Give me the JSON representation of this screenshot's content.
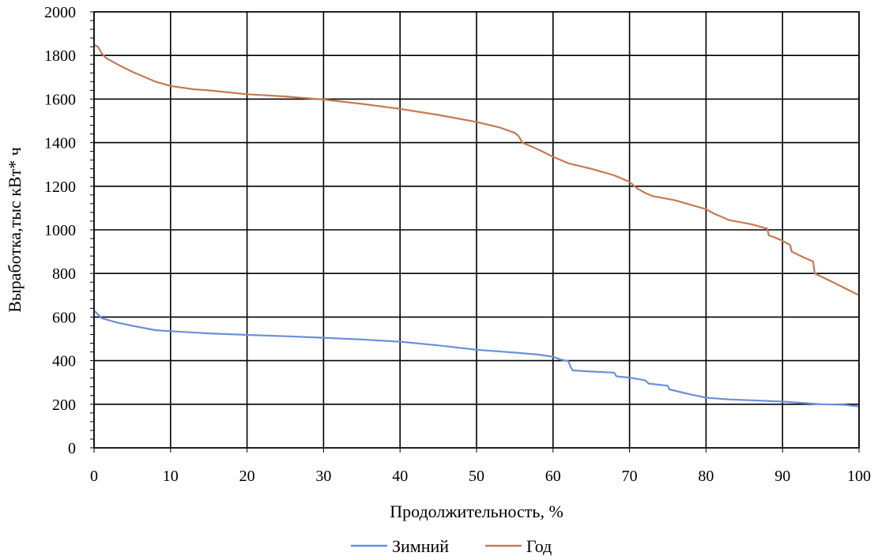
{
  "chart_data": {
    "type": "line",
    "xlabel": "Продолжительность, %",
    "ylabel": "Выработка,тыс кВт* ч",
    "xlim": [
      0,
      100
    ],
    "ylim": [
      0,
      2000
    ],
    "xticks": [
      0,
      10,
      20,
      30,
      40,
      50,
      60,
      70,
      80,
      90,
      100
    ],
    "yticks": [
      0,
      200,
      400,
      600,
      800,
      1000,
      1200,
      1400,
      1600,
      1800,
      2000
    ],
    "grid": true,
    "legend_position": "bottom",
    "series": [
      {
        "name": "Зимний",
        "color": "#6b8fd9",
        "points": [
          [
            0,
            630
          ],
          [
            1,
            595
          ],
          [
            3,
            575
          ],
          [
            5,
            560
          ],
          [
            8,
            540
          ],
          [
            10,
            535
          ],
          [
            15,
            525
          ],
          [
            20,
            518
          ],
          [
            25,
            512
          ],
          [
            30,
            505
          ],
          [
            35,
            497
          ],
          [
            40,
            487
          ],
          [
            45,
            470
          ],
          [
            50,
            450
          ],
          [
            55,
            437
          ],
          [
            58,
            428
          ],
          [
            60,
            418
          ],
          [
            61,
            405
          ],
          [
            62,
            398
          ],
          [
            62.3,
            370
          ],
          [
            62.6,
            355
          ],
          [
            65,
            350
          ],
          [
            68,
            345
          ],
          [
            68.3,
            328
          ],
          [
            70,
            322
          ],
          [
            72,
            310
          ],
          [
            72.5,
            295
          ],
          [
            75,
            285
          ],
          [
            75.2,
            268
          ],
          [
            78,
            245
          ],
          [
            80,
            230
          ],
          [
            83,
            222
          ],
          [
            86,
            218
          ],
          [
            90,
            212
          ],
          [
            93,
            205
          ],
          [
            95,
            200
          ],
          [
            98,
            198
          ],
          [
            100,
            190
          ]
        ]
      },
      {
        "name": "Год",
        "color": "#c57a52",
        "points": [
          [
            0,
            1850
          ],
          [
            0.5,
            1840
          ],
          [
            1,
            1810
          ],
          [
            1.5,
            1790
          ],
          [
            3,
            1760
          ],
          [
            5,
            1725
          ],
          [
            8,
            1680
          ],
          [
            10,
            1660
          ],
          [
            13,
            1645
          ],
          [
            15,
            1640
          ],
          [
            20,
            1622
          ],
          [
            25,
            1612
          ],
          [
            30,
            1598
          ],
          [
            35,
            1578
          ],
          [
            40,
            1555
          ],
          [
            45,
            1527
          ],
          [
            50,
            1495
          ],
          [
            53,
            1470
          ],
          [
            55,
            1445
          ],
          [
            55.5,
            1430
          ],
          [
            56,
            1400
          ],
          [
            58,
            1370
          ],
          [
            60,
            1335
          ],
          [
            62,
            1305
          ],
          [
            65,
            1280
          ],
          [
            68,
            1250
          ],
          [
            70,
            1220
          ],
          [
            71,
            1190
          ],
          [
            72,
            1170
          ],
          [
            73,
            1155
          ],
          [
            76,
            1135
          ],
          [
            78,
            1115
          ],
          [
            80,
            1095
          ],
          [
            81,
            1075
          ],
          [
            82,
            1060
          ],
          [
            83,
            1045
          ],
          [
            86,
            1025
          ],
          [
            88,
            1005
          ],
          [
            88.2,
            975
          ],
          [
            89,
            965
          ],
          [
            90,
            950
          ],
          [
            91,
            930
          ],
          [
            91.2,
            900
          ],
          [
            93,
            870
          ],
          [
            94,
            855
          ],
          [
            94.2,
            800
          ],
          [
            96,
            770
          ],
          [
            98,
            735
          ],
          [
            100,
            700
          ]
        ]
      }
    ]
  }
}
